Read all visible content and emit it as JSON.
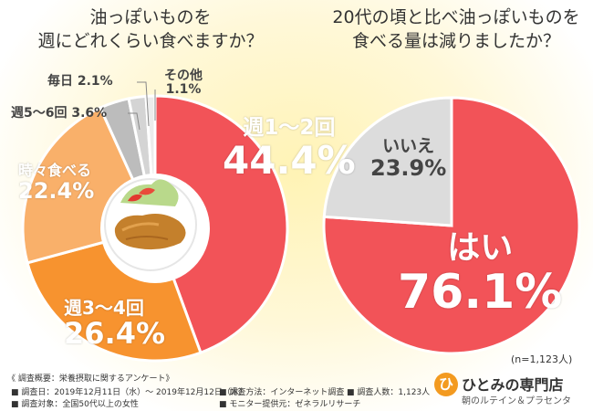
{
  "questions": {
    "q1": [
      "油っぽいものを",
      "週にどれくらい食べますか？"
    ],
    "q2": [
      "20代の頃と比べ油っぽいものを",
      "食べる量は減りましたか？"
    ]
  },
  "chart_data": [
    {
      "type": "pie",
      "title": "油っぽいものを週にどれくらい食べますか？",
      "slices": [
        {
          "label": "週1～2回",
          "value": 44.4,
          "display": "44.4%",
          "color": "#f25358"
        },
        {
          "label": "週3～4回",
          "value": 26.4,
          "display": "26.4%",
          "color": "#f7932f"
        },
        {
          "label": "時々食べる",
          "value": 22.4,
          "display": "22.4%",
          "color": "#f9b06a"
        },
        {
          "label": "週5～6回",
          "value": 3.6,
          "display": "3.6%",
          "color": "#bcbcbc"
        },
        {
          "label": "毎日",
          "value": 2.1,
          "display": "2.1%",
          "color": "#d4d4d4"
        },
        {
          "label": "その他",
          "value": 1.1,
          "display": "1.1%",
          "color": "#ececec"
        }
      ]
    },
    {
      "type": "pie",
      "title": "20代の頃と比べ油っぽいものを食べる量は減りましたか？",
      "slices": [
        {
          "label": "はい",
          "value": 76.1,
          "display": "76.1%",
          "color": "#f25358"
        },
        {
          "label": "いいえ",
          "value": 23.9,
          "display": "23.9%",
          "color": "#dcdcdc"
        }
      ]
    }
  ],
  "sample_note": "(n=1,123人)",
  "footer": {
    "heading": "《 調査概要：栄養摂取に関するアンケート》",
    "date": "調査日：2019年12月11日（水）～ 2019年12月12日（木）",
    "method": "調査方法：インターネット調査",
    "count": "調査人数：1,123人",
    "target": "調査対象：全国50代以上の女性",
    "provider": "モニター提供元：ゼネラルリサーチ"
  },
  "logo": {
    "name": "ひとみの専門店",
    "sub": "朝のルテイン＆プラセンタ",
    "mark": "ひ"
  }
}
